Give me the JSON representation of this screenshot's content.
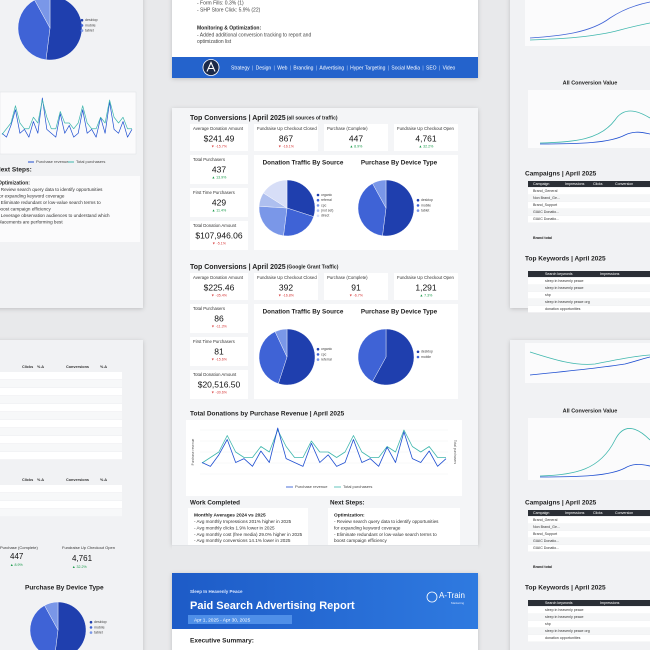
{
  "top_page": {
    "lines": [
      "- Form Fills: 0.3% (1)",
      "- SHP Store Click: 5.9% (22)"
    ],
    "heading": "Monitoring & Optimization:",
    "note": [
      "- Added additional conversion tracking to report and",
      "optimization list"
    ],
    "nav": [
      "Strategy",
      "Design",
      "Web",
      "Branding",
      "Advertising",
      "Hyper Targeting",
      "Social Media",
      "SEO",
      "Video"
    ]
  },
  "report": {
    "sections": [
      {
        "title": "Top Conversions | April 2025",
        "subtitle": "(all sources of traffic)",
        "kpis": [
          {
            "label": "Average Donation Amount",
            "value": "$241.49",
            "change": "▼ -15.7%",
            "trend": "down"
          },
          {
            "label": "Fundraise Up Checkout Closed",
            "value": "867",
            "change": "▼ -16.1%",
            "trend": "down"
          },
          {
            "label": "Purchase (Complete)",
            "value": "447",
            "change": "▲ 8.9%",
            "trend": "up"
          },
          {
            "label": "Fundraise Up Checkout Open",
            "value": "4,761",
            "change": "▲ 32.2%",
            "trend": "up"
          },
          {
            "label": "Total Purchasers",
            "value": "437",
            "change": "▲ 13.9%",
            "trend": "up"
          },
          {
            "label": "First Time Purchasers",
            "value": "429",
            "change": "▲ 11.4%",
            "trend": "up"
          },
          {
            "label": "Total Donation Amount",
            "value": "$107,946.06",
            "change": "▼ -5.1%",
            "trend": "down"
          }
        ],
        "source_chart": {
          "title": "Donation Traffic By Source",
          "labels": [
            "organic",
            "referral",
            "cpc",
            "(not set)",
            "direct"
          ],
          "values": [
            30,
            22,
            24,
            8,
            16
          ]
        },
        "device_chart": {
          "title": "Purchase By Device Type",
          "labels": [
            "desktop",
            "mobile",
            "tablet"
          ],
          "values": [
            52,
            40,
            8
          ]
        }
      },
      {
        "title": "Top Conversions | April 2025",
        "subtitle": "(Google Grant Traffic)",
        "kpis": [
          {
            "label": "Average Donation Amount",
            "value": "$225.46",
            "change": "▼ -35.4%",
            "trend": "down"
          },
          {
            "label": "Fundraise Up Checkout Closed",
            "value": "392",
            "change": "▼ -16.8%",
            "trend": "down"
          },
          {
            "label": "Purchase (Complete)",
            "value": "91",
            "change": "▼ -6.7%",
            "trend": "down"
          },
          {
            "label": "Fundraise Up Checkout Open",
            "value": "1,291",
            "change": "▲ 7.3%",
            "trend": "up"
          },
          {
            "label": "Total Purchasers",
            "value": "86",
            "change": "▼ -11.3%",
            "trend": "down"
          },
          {
            "label": "First Time Purchasers",
            "value": "81",
            "change": "▼ -15.6%",
            "trend": "down"
          },
          {
            "label": "Total Donation Amount",
            "value": "$20,516.50",
            "change": "▼ -30.6%",
            "trend": "down"
          }
        ],
        "source_chart": {
          "title": "Donation Traffic By Source",
          "labels": [
            "organic",
            "cpc",
            "referral"
          ],
          "values": [
            55,
            38,
            7
          ]
        },
        "device_chart": {
          "title": "Purchase By Device Type",
          "labels": [
            "desktop",
            "mobile"
          ],
          "values": [
            58,
            42
          ]
        }
      }
    ],
    "revenue_chart": {
      "title": "Total Donations by Purchase Revenue | April 2025",
      "y_label": "Purchase revenue",
      "y2_label": "Total purchasers",
      "series": [
        {
          "name": "Purchase revenue",
          "color": "#1f4fd1",
          "values": [
            3,
            2,
            5,
            9,
            3,
            4,
            2,
            6,
            3,
            12,
            4,
            3,
            2,
            8,
            3,
            5,
            2,
            3,
            9,
            3,
            4,
            2,
            7,
            3,
            11,
            4,
            3,
            6,
            2,
            4
          ]
        },
        {
          "name": "Total purchasers",
          "color": "#3fb7ad",
          "values": [
            2,
            3,
            4,
            7,
            4,
            3,
            3,
            5,
            4,
            8,
            5,
            3,
            3,
            6,
            4,
            4,
            3,
            4,
            7,
            4,
            3,
            3,
            5,
            4,
            8,
            5,
            4,
            5,
            3,
            3
          ]
        }
      ]
    },
    "work": {
      "title": "Work Completed",
      "heading": "Monthly Averages 2024 vs 2025",
      "items": [
        "- Avg monthly Impressions 201% higher in 2025",
        "- Avg monthly clicks 1.9% lower in 2025",
        "- Avg monthly cost (free media) 29.0% higher in 2025",
        "- Avg monthly conversions 14.1% lower in 2025"
      ]
    },
    "next": {
      "title": "Next Steps:",
      "heading": "Optimization:",
      "items": [
        "- Review search query data to identify opportunities",
        "for expanding keyword coverage",
        "- Eliminate redundant or low-value search terms to",
        "boost campaign efficiency",
        "- Leverage observation audiences to understand which",
        "placements are performing best"
      ]
    }
  },
  "cover": {
    "org": "Sleep In Heavenly Peace",
    "title": "Paid Search Advertising Report",
    "dates": "Apr 1, 2025 - Apr 30, 2025",
    "logo": "A-Train",
    "logo_sub": "Marketing",
    "summary": "Executive Summary:"
  },
  "side": {
    "table_headers": [
      "Clicks",
      "% Δ",
      "Conversions",
      "% Δ"
    ],
    "conv_title": "All Conversion Value",
    "campaigns_title": "Campaigns | April 2025",
    "campaign_headers": [
      "Campaign",
      "Impressions",
      "Clicks",
      "Conversion"
    ],
    "campaign_names": [
      "Brand_General",
      "Non Brand_Ge...",
      "Brand_Support",
      "GIAIC Donatio...",
      "GIAIC Donatio..."
    ],
    "campaign_total": "Brand total",
    "keywords_title": "Top Keywords | April 2025",
    "keyword_headers": [
      "Search keywords",
      "Impressions"
    ],
    "keyword_names": [
      "sleep in heavenly peace",
      "sleep in heavenly peace",
      "shp",
      "sleep in heavenly peace org",
      "donation opportunities"
    ]
  }
}
